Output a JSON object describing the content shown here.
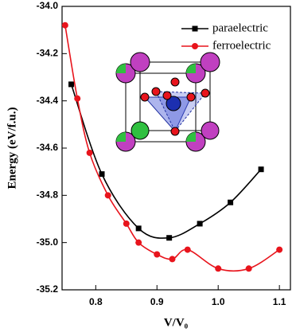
{
  "chart_data": {
    "type": "line",
    "x_label": "V/V₀",
    "y_label": "Energy (eV/f.u.)",
    "xlim": [
      0.745,
      1.118
    ],
    "ylim": [
      -35.2,
      -34.0
    ],
    "xticks": [
      0.8,
      0.9,
      {
        "value": 1.0,
        "label": "1.0"
      },
      1.1
    ],
    "yticks": [
      {
        "value": -34.0,
        "label": "-34.0"
      },
      -34.2,
      -34.4,
      -34.6,
      -34.8,
      {
        "value": -35.0,
        "label": "-35.0"
      },
      -35.2
    ],
    "legend_position": "upper right",
    "series": [
      {
        "name": "paraelectric",
        "color": "#000000",
        "marker": "square",
        "x": [
          0.76,
          0.81,
          0.87,
          0.92,
          0.97,
          1.02,
          1.07
        ],
        "values": [
          -34.33,
          -34.71,
          -34.94,
          -34.98,
          -34.92,
          -34.83,
          -34.69
        ]
      },
      {
        "name": "ferroelectric",
        "color": "#e8141c",
        "marker": "circle",
        "x": [
          0.75,
          0.77,
          0.79,
          0.82,
          0.85,
          0.87,
          0.9,
          0.925,
          0.95,
          1.0,
          1.05,
          1.1
        ],
        "values": [
          -34.08,
          -34.39,
          -34.62,
          -34.8,
          -34.92,
          -35.0,
          -35.05,
          -35.07,
          -35.03,
          -35.11,
          -35.11,
          -35.03
        ]
      }
    ]
  }
}
